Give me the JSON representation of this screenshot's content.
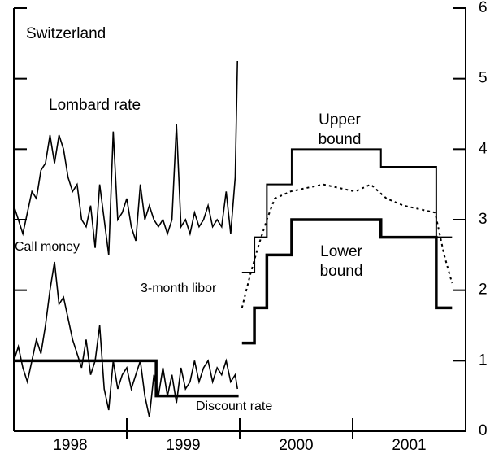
{
  "chart_data": {
    "type": "line",
    "title": "Switzerland",
    "xlim": [
      1998,
      2002
    ],
    "ylim": [
      0,
      6
    ],
    "yticks": [
      0,
      1,
      2,
      3,
      4,
      5,
      6
    ],
    "xticks": [
      {
        "value": 1998.5,
        "label": "1998"
      },
      {
        "value": 1999.5,
        "label": "1999"
      },
      {
        "value": 2000.5,
        "label": "2000"
      },
      {
        "value": 2001.5,
        "label": "2001"
      }
    ],
    "xtick_marks": [
      1999,
      2000,
      2001
    ],
    "series": [
      {
        "name": "Lombard rate",
        "color": "#000",
        "width": 1.6,
        "dash": "none",
        "x": [
          1998.0,
          1998.04,
          1998.08,
          1998.12,
          1998.16,
          1998.2,
          1998.24,
          1998.28,
          1998.32,
          1998.36,
          1998.4,
          1998.44,
          1998.48,
          1998.52,
          1998.56,
          1998.6,
          1998.64,
          1998.68,
          1998.72,
          1998.76,
          1998.8,
          1998.84,
          1998.88,
          1998.92,
          1998.96,
          1999.0,
          1999.04,
          1999.08,
          1999.12,
          1999.16,
          1999.2,
          1999.24,
          1999.28,
          1999.32,
          1999.36,
          1999.4,
          1999.44,
          1999.48,
          1999.52,
          1999.56,
          1999.6,
          1999.64,
          1999.68,
          1999.72,
          1999.76,
          1999.8,
          1999.84,
          1999.88,
          1999.92,
          1999.96,
          1999.98
        ],
        "values": [
          3.2,
          3.0,
          2.8,
          3.1,
          3.4,
          3.3,
          3.7,
          3.8,
          4.2,
          3.8,
          4.2,
          4.0,
          3.6,
          3.4,
          3.5,
          3.0,
          2.9,
          3.2,
          2.6,
          3.5,
          3.0,
          2.5,
          4.25,
          3.0,
          3.1,
          3.3,
          2.9,
          2.7,
          3.5,
          3.0,
          3.2,
          3.0,
          2.9,
          3.0,
          2.8,
          3.0,
          4.35,
          2.9,
          3.0,
          2.8,
          3.1,
          2.9,
          3.0,
          3.2,
          2.9,
          3.0,
          2.9,
          3.4,
          2.8,
          3.6,
          5.25
        ]
      },
      {
        "name": "Call money",
        "color": "#000",
        "width": 1.6,
        "dash": "none",
        "x": [
          1998.0,
          1998.04,
          1998.08,
          1998.12,
          1998.16,
          1998.2,
          1998.24,
          1998.28,
          1998.32,
          1998.36,
          1998.4,
          1998.44,
          1998.48,
          1998.52,
          1998.56,
          1998.6,
          1998.64,
          1998.68,
          1998.72,
          1998.76,
          1998.8,
          1998.84,
          1998.88,
          1998.92,
          1998.96,
          1999.0,
          1999.04,
          1999.08,
          1999.12,
          1999.16,
          1999.2,
          1999.24,
          1999.28,
          1999.32,
          1999.36,
          1999.4,
          1999.44,
          1999.48,
          1999.52,
          1999.56,
          1999.6,
          1999.64,
          1999.68,
          1999.72,
          1999.76,
          1999.8,
          1999.84,
          1999.88,
          1999.92,
          1999.96,
          1999.98
        ],
        "values": [
          1.0,
          1.2,
          0.9,
          0.7,
          1.0,
          1.3,
          1.1,
          1.5,
          2.0,
          2.4,
          1.8,
          1.9,
          1.6,
          1.3,
          1.1,
          0.9,
          1.3,
          0.8,
          1.0,
          1.5,
          0.6,
          0.3,
          1.0,
          0.6,
          0.8,
          0.9,
          0.6,
          0.8,
          1.0,
          0.5,
          0.2,
          0.8,
          0.5,
          0.9,
          0.5,
          0.8,
          0.4,
          0.9,
          0.6,
          0.7,
          1.0,
          0.7,
          0.9,
          1.0,
          0.7,
          0.9,
          0.8,
          1.0,
          0.7,
          0.8,
          0.6
        ]
      },
      {
        "name": "Discount rate",
        "color": "#000",
        "width": 3.5,
        "dash": "none",
        "x": [
          1998.0,
          1999.26,
          1999.26,
          1999.99
        ],
        "values": [
          1,
          1,
          0.5,
          0.5
        ]
      },
      {
        "name": "Upper bound",
        "color": "#000",
        "width": 2,
        "dash": "none",
        "x": [
          2000.02,
          2000.13,
          2000.13,
          2000.24,
          2000.24,
          2000.46,
          2000.46,
          2001.25,
          2001.25,
          2001.74,
          2001.74,
          2001.88
        ],
        "values": [
          2.25,
          2.25,
          2.75,
          2.75,
          3.5,
          3.5,
          4.0,
          4.0,
          3.75,
          3.75,
          2.75,
          2.75
        ]
      },
      {
        "name": "Lower bound",
        "color": "#000",
        "width": 3.5,
        "dash": "none",
        "x": [
          2000.02,
          2000.13,
          2000.13,
          2000.24,
          2000.24,
          2000.46,
          2000.46,
          2001.25,
          2001.25,
          2001.74,
          2001.74,
          2001.88
        ],
        "values": [
          1.25,
          1.25,
          1.75,
          1.75,
          2.5,
          2.5,
          3.0,
          3.0,
          2.75,
          2.75,
          1.75,
          1.75
        ]
      },
      {
        "name": "3-month libor",
        "color": "#000",
        "width": 2,
        "dash": "3 4",
        "x": [
          2000.02,
          2000.09,
          2000.16,
          2000.24,
          2000.31,
          2000.45,
          2000.59,
          2000.74,
          2000.88,
          2001.02,
          2001.16,
          2001.3,
          2001.45,
          2001.59,
          2001.73,
          2001.81,
          2001.88
        ],
        "values": [
          1.75,
          2.2,
          2.6,
          3.0,
          3.3,
          3.4,
          3.45,
          3.5,
          3.45,
          3.4,
          3.5,
          3.3,
          3.2,
          3.15,
          3.1,
          2.5,
          2.1
        ]
      }
    ],
    "annotations": {
      "lombard": "Lombard rate",
      "call": "Call money",
      "libor": "3-month libor",
      "discount": "Discount rate",
      "upper": [
        "Upper",
        "bound"
      ],
      "lower": [
        "Lower",
        "bound"
      ]
    }
  }
}
